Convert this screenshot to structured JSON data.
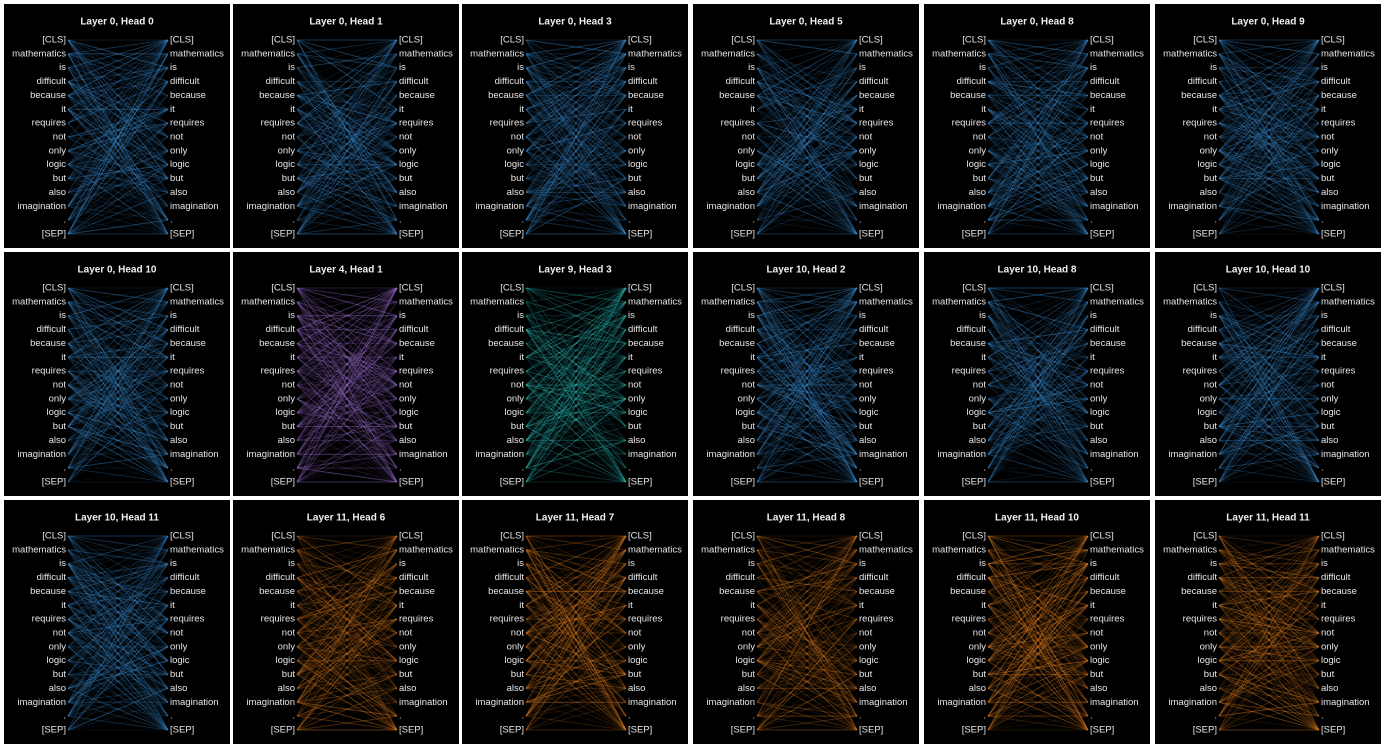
{
  "tokens": [
    "[CLS]",
    "mathematics",
    "is",
    "difficult",
    "because",
    "it",
    "requires",
    "not",
    "only",
    "logic",
    "but",
    "also",
    "imagination",
    ".",
    "[SEP]"
  ],
  "panels": [
    {
      "title": "Layer 0, Head 0",
      "color": "#3b8fd6"
    },
    {
      "title": "Layer 0, Head 1",
      "color": "#3b8fd6"
    },
    {
      "title": "Layer 0, Head 3",
      "color": "#3b8fd6"
    },
    {
      "title": "Layer 0, Head 5",
      "color": "#3b8fd6"
    },
    {
      "title": "Layer 0, Head 8",
      "color": "#3b8fd6"
    },
    {
      "title": "Layer 0, Head 9",
      "color": "#3b8fd6"
    },
    {
      "title": "Layer 0, Head 10",
      "color": "#3b8fd6"
    },
    {
      "title": "Layer 4, Head 1",
      "color": "#a070d8"
    },
    {
      "title": "Layer 9, Head 3",
      "color": "#2cc0c0"
    },
    {
      "title": "Layer 10, Head 2",
      "color": "#3b8fd6"
    },
    {
      "title": "Layer 10, Head 8",
      "color": "#3b8fd6"
    },
    {
      "title": "Layer 10, Head 10",
      "color": "#3b8fd6"
    },
    {
      "title": "Layer 10, Head 11",
      "color": "#3b8fd6"
    },
    {
      "title": "Layer 11, Head 6",
      "color": "#e8801e"
    },
    {
      "title": "Layer 11, Head 7",
      "color": "#e8801e"
    },
    {
      "title": "Layer 11, Head 8",
      "color": "#e8801e"
    },
    {
      "title": "Layer 11, Head 10",
      "color": "#e8801e"
    },
    {
      "title": "Layer 11, Head 11",
      "color": "#e8801e"
    }
  ]
}
